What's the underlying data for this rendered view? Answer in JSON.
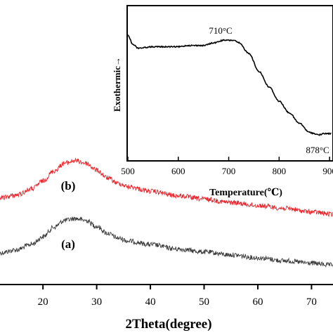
{
  "chart_data": [
    {
      "type": "line",
      "xlabel": "2Theta(degree)",
      "ylabel": "",
      "xlim": [
        12,
        74
      ],
      "x_ticks": [
        20,
        30,
        40,
        50,
        60,
        70
      ],
      "grid": false,
      "series": [
        {
          "name": "(a)",
          "color": "#3a3a3a",
          "x": [
            12,
            15,
            18,
            20,
            22,
            24,
            26,
            28,
            30,
            32,
            34,
            36,
            40,
            45,
            50,
            55,
            60,
            65,
            70,
            74
          ],
          "y": [
            0.0,
            0.06,
            0.18,
            0.33,
            0.52,
            0.66,
            0.7,
            0.66,
            0.54,
            0.4,
            0.3,
            0.24,
            0.17,
            0.08,
            0.02,
            -0.04,
            -0.1,
            -0.16,
            -0.21,
            -0.25
          ]
        },
        {
          "name": "(b)",
          "color": "#e8262d",
          "x": [
            12,
            15,
            18,
            20,
            22,
            24,
            26,
            28,
            30,
            32,
            34,
            36,
            40,
            45,
            50,
            55,
            60,
            65,
            70,
            74
          ],
          "y": [
            1.0,
            1.06,
            1.19,
            1.35,
            1.55,
            1.71,
            1.76,
            1.71,
            1.57,
            1.41,
            1.3,
            1.23,
            1.14,
            1.05,
            0.98,
            0.91,
            0.85,
            0.79,
            0.72,
            0.67
          ]
        }
      ],
      "annotations": [
        "(a)",
        "(b)"
      ]
    },
    {
      "type": "line",
      "xlabel": "Temperature(℃)",
      "ylabel": "Exothermic→",
      "xlim": [
        500,
        950
      ],
      "x_ticks": [
        500,
        600,
        700,
        800,
        900
      ],
      "grid": false,
      "series": [
        {
          "color": "#000000",
          "x": [
            500,
            510,
            520,
            550,
            580,
            600,
            620,
            650,
            670,
            690,
            710,
            720,
            740,
            760,
            780,
            800,
            820,
            840,
            860,
            870,
            878,
            890,
            910,
            930,
            950
          ],
          "y": [
            1.0,
            0.93,
            0.9,
            0.91,
            0.91,
            0.91,
            0.92,
            0.92,
            0.94,
            0.96,
            0.96,
            0.94,
            0.86,
            0.72,
            0.6,
            0.49,
            0.4,
            0.32,
            0.25,
            0.24,
            0.23,
            0.24,
            0.24,
            0.24,
            0.3
          ]
        }
      ],
      "annotations": [
        {
          "text": "710°C",
          "x": 710
        },
        {
          "text": "878°C",
          "x": 915
        }
      ]
    }
  ]
}
